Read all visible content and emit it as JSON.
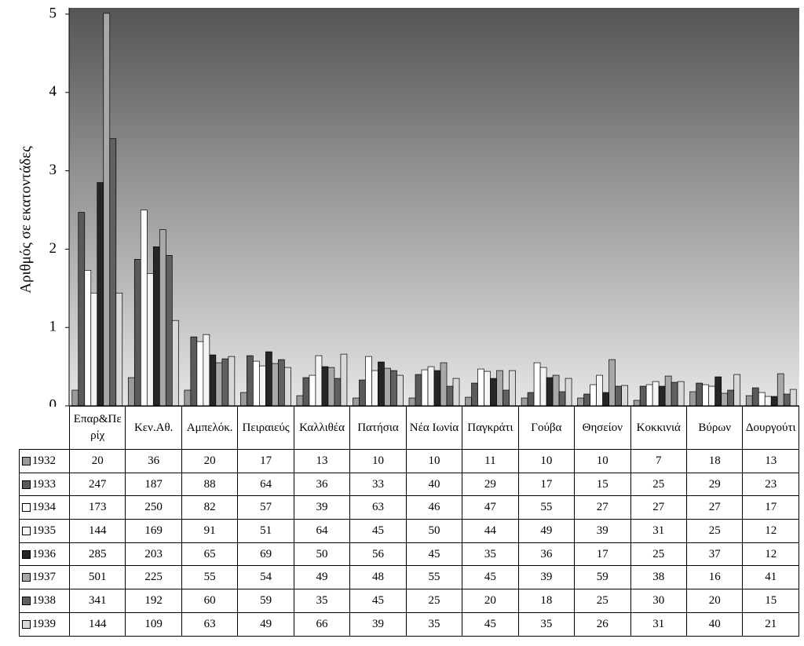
{
  "chart_data": {
    "type": "bar",
    "y_label": "Αριθμός σε εκατοντάδες",
    "categories": [
      "Επαρ&Περίχ",
      "Κεν.Αθ.",
      "Αμπελόκ.",
      "Πειραιεύς",
      "Καλλιθέα",
      "Πατήσια",
      "Νέα Ιωνία",
      "Παγκράτι",
      "Γούβα",
      "Θησείον",
      "Κοκκινιά",
      "Βύρων",
      "Δουργούτι"
    ],
    "series": [
      {
        "name": "1932",
        "color": "#9a9a9a",
        "values": [
          20,
          36,
          20,
          17,
          13,
          10,
          10,
          11,
          10,
          10,
          7,
          18,
          13
        ]
      },
      {
        "name": "1933",
        "color": "#5a5a5a",
        "values": [
          247,
          187,
          88,
          64,
          36,
          33,
          40,
          29,
          17,
          15,
          25,
          29,
          23
        ]
      },
      {
        "name": "1934",
        "color": "#ffffff",
        "values": [
          173,
          250,
          82,
          57,
          39,
          63,
          46,
          47,
          55,
          27,
          27,
          27,
          17
        ]
      },
      {
        "name": "1935",
        "color": "#f4f4f4",
        "values": [
          144,
          169,
          91,
          51,
          64,
          45,
          50,
          44,
          49,
          39,
          31,
          25,
          12
        ]
      },
      {
        "name": "1936",
        "color": "#262626",
        "values": [
          285,
          203,
          65,
          69,
          50,
          56,
          45,
          35,
          36,
          17,
          25,
          37,
          12
        ]
      },
      {
        "name": "1937",
        "color": "#a8a8a8",
        "values": [
          501,
          225,
          55,
          54,
          49,
          48,
          55,
          45,
          39,
          59,
          38,
          16,
          41
        ]
      },
      {
        "name": "1938",
        "color": "#606060",
        "values": [
          341,
          192,
          60,
          59,
          35,
          45,
          25,
          20,
          18,
          25,
          30,
          20,
          15
        ]
      },
      {
        "name": "1939",
        "color": "#d8d8d8",
        "values": [
          144,
          109,
          63,
          49,
          66,
          39,
          35,
          45,
          35,
          26,
          31,
          40,
          21
        ]
      }
    ],
    "ylim": [
      0,
      508
    ],
    "yticks": [
      {
        "value": 0,
        "label": "0"
      },
      {
        "value": 100,
        "label": "1"
      },
      {
        "value": 200,
        "label": "2"
      },
      {
        "value": 300,
        "label": "3"
      },
      {
        "value": 400,
        "label": "4"
      },
      {
        "value": 500,
        "label": "5"
      }
    ]
  }
}
